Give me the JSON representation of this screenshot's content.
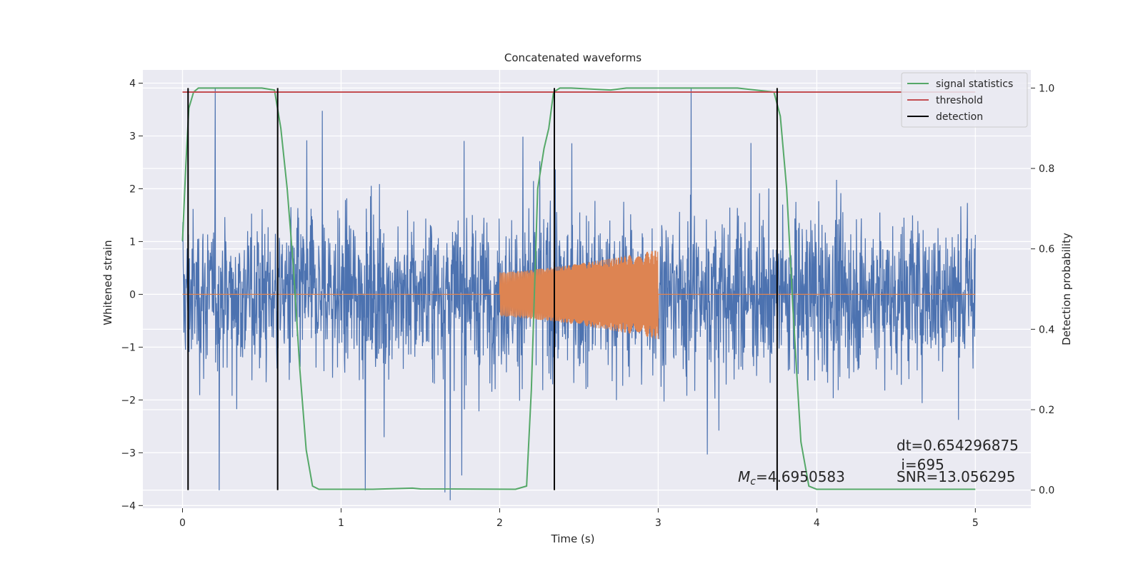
{
  "chart_data": {
    "type": "line",
    "title": "Concatenated waveforms",
    "xlabel": "Time (s)",
    "ylabel": "Whitened strain",
    "ylabel_right": "Detection probability",
    "xlim": [
      -0.25,
      5.35
    ],
    "ylim": [
      -4.05,
      4.25
    ],
    "ylim_right": [
      -0.045,
      1.045
    ],
    "xticks": [
      0,
      1,
      2,
      3,
      4,
      5
    ],
    "yticks": [
      -4,
      -3,
      -2,
      -1,
      0,
      1,
      2,
      3,
      4
    ],
    "yticks_right": [
      0.0,
      0.2,
      0.4,
      0.6,
      0.8,
      1.0
    ],
    "grid": true,
    "legend_position": "top-right",
    "strain_series": {
      "duration_s": 5,
      "color": "#4c72b0",
      "typical_amplitude": 1.0,
      "peak_amplitude": 3.9
    },
    "template_series": {
      "color": "#dd8452",
      "start_s": 2.0,
      "end_s": 3.0,
      "amplitude_start": 0.42,
      "amplitude_end": 0.85,
      "zero_line_span": [
        0,
        5
      ]
    },
    "series": [
      {
        "name": "signal statistics",
        "color": "#55a868",
        "axis": "right",
        "x": [
          0,
          0.02,
          0.04,
          0.07,
          0.1,
          0.2,
          0.5,
          0.58,
          0.62,
          0.66,
          0.7,
          0.74,
          0.78,
          0.82,
          0.86,
          1.2,
          1.45,
          1.5,
          2.1,
          2.17,
          2.2,
          2.24,
          2.28,
          2.31,
          2.34,
          2.38,
          2.45,
          2.7,
          2.8,
          3.5,
          3.73,
          3.77,
          3.81,
          3.85,
          3.88,
          3.9,
          3.95,
          4.0,
          4.5,
          5.0
        ],
        "y": [
          0.62,
          0.8,
          0.95,
          0.99,
          1.0,
          1.0,
          1.0,
          0.995,
          0.9,
          0.75,
          0.55,
          0.3,
          0.1,
          0.01,
          0.002,
          0.002,
          0.005,
          0.003,
          0.002,
          0.01,
          0.25,
          0.75,
          0.85,
          0.9,
          0.99,
          1.0,
          1.0,
          0.995,
          1.0,
          1.0,
          0.99,
          0.93,
          0.75,
          0.45,
          0.25,
          0.12,
          0.01,
          0.002,
          0.002,
          0.002
        ]
      },
      {
        "name": "threshold",
        "color": "#c44e52",
        "axis": "right",
        "x": [
          0,
          5
        ],
        "y": [
          0.99,
          0.99
        ]
      },
      {
        "name": "detection",
        "color": "#000000",
        "axis": "right",
        "type": "vlines",
        "x": [
          0.035,
          0.6,
          2.345,
          3.75
        ],
        "y_range": [
          0,
          1
        ]
      }
    ],
    "annotations": {
      "dt": "dt=0.654296875",
      "i": " i=695",
      "mc_symbol": "M",
      "mc_sub": "c",
      "mc_value": "=4.6950583",
      "snr": "SNR=13.056295"
    },
    "colors": {
      "background": "#eaeaf2",
      "grid": "#ffffff"
    }
  }
}
